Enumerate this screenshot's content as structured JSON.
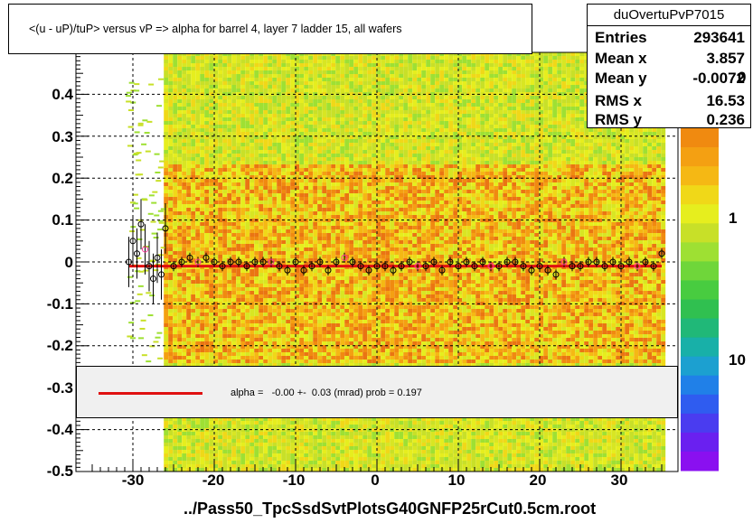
{
  "chart_data": {
    "type": "heatmap",
    "title": "<(u - uP)/tuP> versus   vP => alpha for barrel 4, layer 7 ladder 15, all wafers",
    "xlabel": "../Pass50_TpcSsdSvtPlotsG40GNFP25rCut0.5cm.root",
    "ylabel": "",
    "xlim": [
      -37,
      37
    ],
    "ylim": [
      -0.5,
      0.5
    ],
    "x_ticks": [
      "-30",
      "-20",
      "-10",
      "0",
      "10",
      "20",
      "30"
    ],
    "y_ticks": [
      "-0.5",
      "-0.4",
      "-0.3",
      "-0.2",
      "-0.1",
      "0",
      "0.1",
      "0.2",
      "0.3",
      "0.4"
    ],
    "z_ticks": [
      "1",
      "10"
    ],
    "z_partial_label": "0",
    "grid": true,
    "profile": {
      "x": [
        -30.5,
        -30,
        -29.5,
        -29,
        -28.5,
        -28,
        -27.5,
        -27,
        -26.5,
        -26,
        -25,
        -24,
        -23,
        -22,
        -21,
        -20,
        -19,
        -18,
        -17,
        -16,
        -15,
        -14,
        -13,
        -12,
        -11,
        -10,
        -9,
        -8,
        -7,
        -6,
        -5,
        -4,
        -3,
        -2,
        -1,
        0,
        1,
        2,
        3,
        4,
        5,
        6,
        7,
        8,
        9,
        10,
        11,
        12,
        13,
        14,
        15,
        16,
        17,
        18,
        19,
        20,
        21,
        22,
        23,
        24,
        25,
        26,
        27,
        28,
        29,
        30,
        31,
        32,
        33,
        34,
        35
      ],
      "y": [
        0.0,
        0.05,
        0.02,
        0.09,
        0.03,
        -0.01,
        -0.04,
        0.01,
        -0.03,
        0.08,
        -0.01,
        0.0,
        0.01,
        0.0,
        0.01,
        0.0,
        -0.01,
        0.0,
        0.0,
        -0.01,
        0.0,
        0.0,
        0.0,
        -0.01,
        -0.02,
        0.0,
        -0.02,
        -0.01,
        0.0,
        -0.02,
        0.0,
        0.01,
        0.0,
        -0.01,
        -0.02,
        -0.01,
        -0.01,
        -0.02,
        -0.01,
        0.0,
        -0.01,
        -0.01,
        0.0,
        -0.02,
        0.0,
        -0.01,
        0.0,
        -0.01,
        0.0,
        -0.01,
        -0.01,
        0.0,
        0.0,
        -0.01,
        -0.02,
        -0.01,
        -0.02,
        -0.03,
        0.0,
        -0.01,
        -0.01,
        0.0,
        0.0,
        -0.01,
        0.0,
        -0.01,
        0.0,
        -0.01,
        0.0,
        -0.01,
        0.02
      ]
    },
    "fit_label": "alpha =   -0.00 +-  0.03 (mrad) prob = 0.197",
    "fit_color": "#e01010",
    "stats": {
      "name": "duOvertuPvP7015",
      "rows": [
        {
          "label": "Entries",
          "value": "293641"
        },
        {
          "label": "Mean x",
          "value": "3.857"
        },
        {
          "label": "Mean y",
          "value": "-0.0072"
        },
        {
          "label": "RMS x",
          "value": "16.53"
        },
        {
          "label": "RMS y",
          "value": "0.236"
        }
      ]
    }
  }
}
